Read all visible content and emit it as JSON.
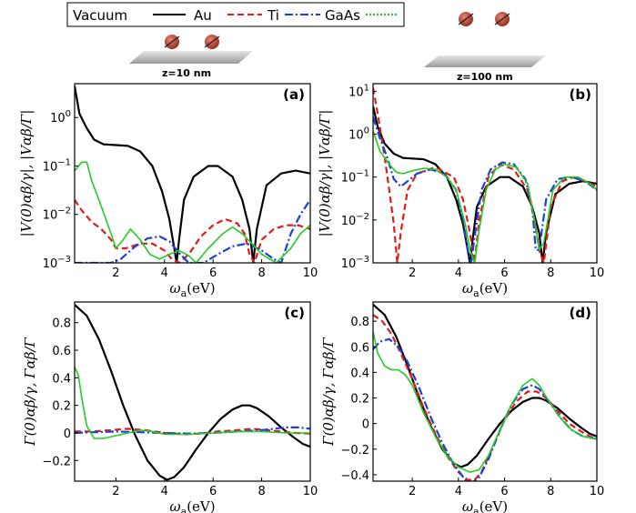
{
  "legend": [
    {
      "name": "Vacuum",
      "color": "#000000",
      "dash": ""
    },
    {
      "name": "Au",
      "color": "#000000",
      "dash": ""
    },
    {
      "name": "Ti",
      "color": "#e31a1c",
      "dash": "7,4"
    },
    {
      "name": "GaAs",
      "color": "#1f3fd6",
      "dash": "9,3,2,3"
    }
  ],
  "legend_green": {
    "color": "#22cc22",
    "dash": "2,2"
  },
  "legend_text": {
    "vacuum": "Vacuum",
    "au": "Au",
    "ti": "Ti",
    "gaas": "GaAs"
  },
  "schematics": {
    "left_z": "z=10 nm",
    "right_z": "z=100 nm"
  },
  "colors": {
    "black": "#000000",
    "red": "#e31a1c",
    "blue": "#1f3fd6",
    "green": "#22cc22",
    "atom": "#b03a2e"
  },
  "chart_data": [
    {
      "panel": "(a)",
      "type": "line",
      "yscale": "log",
      "xlim": [
        0.3,
        10
      ],
      "ylim": [
        0.001,
        5
      ],
      "xticks": [
        2,
        4,
        6,
        8,
        10
      ],
      "yticks_labels": [
        "10^-3",
        "10^-2",
        "10^-1",
        "10^0"
      ],
      "xlabel": "ωa(eV)",
      "ylabel": "|V(0)αβ/γ|, |Vαβ/Γ|",
      "series": [
        {
          "color_key": "black",
          "x": [
            0.3,
            0.5,
            0.8,
            1.1,
            1.5,
            2,
            2.5,
            3,
            3.5,
            3.9,
            4.2,
            4.4,
            4.5,
            4.6,
            4.8,
            5.2,
            5.8,
            6.2,
            6.8,
            7.2,
            7.5,
            7.65,
            7.8,
            8.2,
            8.8,
            9.4,
            10
          ],
          "y": [
            4.5,
            1.2,
            0.6,
            0.35,
            0.28,
            0.27,
            0.26,
            0.2,
            0.1,
            0.03,
            0.008,
            0.002,
            0.001,
            0.003,
            0.02,
            0.06,
            0.1,
            0.1,
            0.06,
            0.02,
            0.005,
            0.001,
            0.005,
            0.04,
            0.07,
            0.08,
            0.07
          ]
        },
        {
          "color_key": "red",
          "x": [
            0.3,
            0.6,
            1,
            1.4,
            1.8,
            2,
            2.4,
            3,
            3.5,
            4,
            4.3,
            4.6,
            5,
            5.5,
            6,
            6.5,
            7,
            7.3,
            7.5,
            7.7,
            8,
            8.5,
            9,
            9.5,
            10
          ],
          "y": [
            0.02,
            0.012,
            0.007,
            0.005,
            0.003,
            0.002,
            0.002,
            0.0025,
            0.0025,
            0.0018,
            0.0012,
            0.001,
            0.0015,
            0.0035,
            0.006,
            0.008,
            0.0065,
            0.004,
            0.0015,
            0.001,
            0.003,
            0.005,
            0.006,
            0.006,
            0.005
          ]
        },
        {
          "color_key": "blue",
          "x": [
            0.3,
            1,
            1.8,
            2.2,
            2.8,
            3.3,
            3.8,
            4.2,
            4.6,
            5,
            5.6,
            6.2,
            6.8,
            7.4,
            8,
            8.5,
            8.8,
            9.2,
            9.6,
            10
          ],
          "y": [
            0.001,
            0.001,
            0.001,
            0.0012,
            0.0022,
            0.0032,
            0.0035,
            0.0028,
            0.0016,
            0.001,
            0.001,
            0.0015,
            0.0022,
            0.0025,
            0.0018,
            0.0012,
            0.001,
            0.004,
            0.01,
            0.02
          ]
        },
        {
          "color_key": "green",
          "x": [
            0.3,
            0.6,
            0.8,
            1,
            1.3,
            1.8,
            2,
            2.3,
            2.6,
            3,
            3.4,
            3.8,
            4.2,
            4.6,
            5,
            5.3,
            5.8,
            6.4,
            6.8,
            7.2,
            7.6,
            8,
            8.6,
            9.2,
            9.6,
            10
          ],
          "y": [
            0.08,
            0.12,
            0.12,
            0.05,
            0.02,
            0.004,
            0.002,
            0.003,
            0.005,
            0.003,
            0.0015,
            0.0012,
            0.0015,
            0.0018,
            0.0014,
            0.001,
            0.002,
            0.004,
            0.0055,
            0.004,
            0.0025,
            0.0015,
            0.001,
            0.002,
            0.004,
            0.006
          ]
        }
      ]
    },
    {
      "panel": "(b)",
      "type": "line",
      "yscale": "log",
      "xlim": [
        0.3,
        10
      ],
      "ylim": [
        0.001,
        15
      ],
      "xticks": [
        2,
        4,
        6,
        8,
        10
      ],
      "yticks_labels": [
        "10^-3",
        "10^-2",
        "10^-1",
        "10^0",
        "10^1"
      ],
      "xlabel": "ωa(eV)",
      "ylabel": "|V(0)αβ/γ|, |Vαβ/Γ|",
      "series": [
        {
          "color_key": "black",
          "x": [
            0.3,
            0.5,
            0.8,
            1.2,
            1.6,
            2,
            2.5,
            3,
            3.5,
            3.9,
            4.2,
            4.4,
            4.5,
            4.6,
            4.8,
            5.2,
            5.8,
            6.2,
            6.8,
            7.2,
            7.5,
            7.65,
            7.8,
            8.2,
            8.8,
            9.4,
            10
          ],
          "y": [
            4.5,
            1.5,
            0.6,
            0.35,
            0.28,
            0.27,
            0.26,
            0.2,
            0.1,
            0.03,
            0.008,
            0.002,
            0.001,
            0.003,
            0.02,
            0.06,
            0.1,
            0.1,
            0.06,
            0.02,
            0.005,
            0.001,
            0.005,
            0.04,
            0.07,
            0.08,
            0.07
          ]
        },
        {
          "color_key": "red",
          "x": [
            0.3,
            0.5,
            0.8,
            1,
            1.2,
            1.35,
            1.5,
            1.8,
            2.2,
            3,
            3.8,
            4.2,
            4.5,
            4.7,
            4.9,
            5.3,
            5.8,
            6.4,
            7,
            7.3,
            7.5,
            7.7,
            8,
            8.5,
            9,
            9.5,
            10
          ],
          "y": [
            12,
            3,
            0.3,
            0.05,
            0.008,
            0.001,
            0.005,
            0.05,
            0.12,
            0.17,
            0.1,
            0.03,
            0.005,
            0.001,
            0.01,
            0.1,
            0.2,
            0.15,
            0.05,
            0.01,
            0.002,
            0.001,
            0.02,
            0.08,
            0.1,
            0.08,
            0.06
          ]
        },
        {
          "color_key": "blue",
          "x": [
            0.3,
            0.6,
            0.9,
            1.2,
            1.5,
            1.8,
            2.2,
            2.8,
            3.4,
            3.9,
            4.2,
            4.4,
            4.55,
            4.7,
            5,
            5.4,
            5.9,
            6.4,
            6.9,
            7.2,
            7.35,
            7.5,
            7.8,
            8.3,
            8.9,
            9.5,
            10
          ],
          "y": [
            2.5,
            0.8,
            0.3,
            0.09,
            0.06,
            0.08,
            0.12,
            0.15,
            0.12,
            0.05,
            0.01,
            0.002,
            0.001,
            0.004,
            0.05,
            0.15,
            0.22,
            0.2,
            0.09,
            0.02,
            0.002,
            0.002,
            0.03,
            0.09,
            0.1,
            0.08,
            0.05
          ]
        },
        {
          "color_key": "green",
          "x": [
            0.3,
            0.6,
            1,
            1.3,
            1.6,
            2,
            2.5,
            3,
            3.5,
            3.9,
            4.3,
            4.5,
            4.7,
            4.9,
            5.2,
            5.6,
            6,
            6.5,
            7,
            7.3,
            7.5,
            7.7,
            8.1,
            8.6,
            9.2,
            9.7,
            10
          ],
          "y": [
            1.2,
            0.4,
            0.2,
            0.13,
            0.12,
            0.14,
            0.16,
            0.15,
            0.1,
            0.05,
            0.008,
            0.002,
            0.001,
            0.006,
            0.05,
            0.15,
            0.2,
            0.17,
            0.07,
            0.01,
            0.002,
            0.003,
            0.05,
            0.1,
            0.1,
            0.07,
            0.05
          ]
        }
      ]
    },
    {
      "panel": "(c)",
      "type": "line",
      "yscale": "linear",
      "xlim": [
        0.3,
        10
      ],
      "ylim": [
        -0.35,
        0.95
      ],
      "xticks": [
        2,
        4,
        6,
        8,
        10
      ],
      "yticks": [
        -0.2,
        0,
        0.2,
        0.4,
        0.6,
        0.8
      ],
      "xlabel": "ωa(eV)",
      "ylabel": "Γ(0)αβ/γ, Γαβ/Γ",
      "series": [
        {
          "color_key": "black",
          "x": [
            0.3,
            0.8,
            1.3,
            1.8,
            2.3,
            2.8,
            3.3,
            3.8,
            4.1,
            4.4,
            4.8,
            5.3,
            5.8,
            6.3,
            6.8,
            7.2,
            7.5,
            7.8,
            8.3,
            8.8,
            9.3,
            9.7,
            10
          ],
          "y": [
            0.93,
            0.85,
            0.68,
            0.45,
            0.2,
            -0.02,
            -0.2,
            -0.31,
            -0.34,
            -0.32,
            -0.25,
            -0.12,
            0,
            0.1,
            0.17,
            0.2,
            0.2,
            0.18,
            0.12,
            0.04,
            -0.03,
            -0.08,
            -0.1
          ]
        },
        {
          "color_key": "red",
          "x": [
            0.3,
            1,
            1.8,
            2.5,
            3.2,
            4,
            4.8,
            5.5,
            6.2,
            7,
            7.6,
            8.2,
            8.8,
            9.4,
            10
          ],
          "y": [
            0.01,
            0.01,
            0.02,
            0.03,
            0.02,
            0.0,
            -0.01,
            -0.005,
            0.01,
            0.02,
            0.03,
            0.02,
            0.01,
            0.0,
            -0.005
          ]
        },
        {
          "color_key": "blue",
          "x": [
            0.3,
            1,
            2,
            3,
            4,
            5,
            6,
            7,
            8,
            9,
            9.5,
            10
          ],
          "y": [
            0.0,
            0.005,
            0.01,
            0.005,
            0.0,
            -0.005,
            0.0,
            0.01,
            0.02,
            0.04,
            0.04,
            0.03
          ]
        },
        {
          "color_key": "green",
          "x": [
            0.3,
            0.45,
            0.6,
            0.8,
            1.1,
            1.5,
            2,
            2.5,
            3,
            3.5,
            4,
            5,
            6,
            7,
            8,
            9,
            10
          ],
          "y": [
            0.48,
            0.42,
            0.25,
            0.05,
            -0.04,
            -0.04,
            -0.02,
            0.0,
            0.02,
            0.01,
            -0.01,
            -0.01,
            0.0,
            0.01,
            0.01,
            0.0,
            0.0
          ]
        }
      ]
    },
    {
      "panel": "(d)",
      "type": "line",
      "yscale": "linear",
      "xlim": [
        0.3,
        10
      ],
      "ylim": [
        -0.45,
        0.95
      ],
      "xticks": [
        2,
        4,
        6,
        8,
        10
      ],
      "yticks": [
        -0.4,
        -0.2,
        0,
        0.2,
        0.4,
        0.6,
        0.8
      ],
      "xlabel": "ωa(eV)",
      "ylabel": "Γ(0)αβ/γ, Γαβ/Γ",
      "series": [
        {
          "color_key": "black",
          "x": [
            0.3,
            0.8,
            1.3,
            1.8,
            2.3,
            2.8,
            3.3,
            3.8,
            4.1,
            4.4,
            4.8,
            5.3,
            5.8,
            6.3,
            6.8,
            7.2,
            7.5,
            7.8,
            8.3,
            8.8,
            9.3,
            9.7,
            10
          ],
          "y": [
            0.93,
            0.85,
            0.68,
            0.45,
            0.2,
            -0.02,
            -0.2,
            -0.31,
            -0.34,
            -0.32,
            -0.25,
            -0.12,
            0,
            0.1,
            0.17,
            0.2,
            0.2,
            0.18,
            0.12,
            0.04,
            -0.03,
            -0.08,
            -0.1
          ]
        },
        {
          "color_key": "red",
          "x": [
            0.3,
            0.7,
            1.1,
            1.5,
            2,
            2.5,
            3,
            3.5,
            4,
            4.4,
            4.7,
            5,
            5.5,
            6,
            6.5,
            7,
            7.4,
            7.8,
            8.3,
            8.8,
            9.3,
            9.7,
            10
          ],
          "y": [
            0.85,
            0.8,
            0.7,
            0.55,
            0.35,
            0.12,
            -0.08,
            -0.25,
            -0.38,
            -0.44,
            -0.44,
            -0.38,
            -0.18,
            0.03,
            0.17,
            0.25,
            0.25,
            0.2,
            0.1,
            0.0,
            -0.06,
            -0.1,
            -0.12
          ]
        },
        {
          "color_key": "blue",
          "x": [
            0.3,
            0.6,
            1,
            1.4,
            1.8,
            2.3,
            2.8,
            3.3,
            3.8,
            4.3,
            4.6,
            4.9,
            5.3,
            5.8,
            6.3,
            6.8,
            7.2,
            7.5,
            7.9,
            8.4,
            8.9,
            9.4,
            10
          ],
          "y": [
            0.58,
            0.64,
            0.66,
            0.6,
            0.48,
            0.28,
            0.05,
            -0.15,
            -0.32,
            -0.44,
            -0.46,
            -0.42,
            -0.28,
            -0.05,
            0.15,
            0.27,
            0.3,
            0.27,
            0.18,
            0.05,
            -0.05,
            -0.1,
            -0.12
          ]
        },
        {
          "color_key": "green",
          "x": [
            0.3,
            0.5,
            0.8,
            1.1,
            1.4,
            1.7,
            2,
            2.5,
            3,
            3.5,
            4,
            4.5,
            4.9,
            5.3,
            5.8,
            6.3,
            6.8,
            7.2,
            7.5,
            7.9,
            8.4,
            8.9,
            9.4,
            10
          ],
          "y": [
            0.72,
            0.55,
            0.45,
            0.42,
            0.42,
            0.38,
            0.3,
            0.08,
            -0.1,
            -0.25,
            -0.34,
            -0.38,
            -0.36,
            -0.25,
            -0.05,
            0.15,
            0.3,
            0.35,
            0.3,
            0.18,
            0.05,
            -0.05,
            -0.1,
            -0.12
          ]
        }
      ]
    }
  ]
}
